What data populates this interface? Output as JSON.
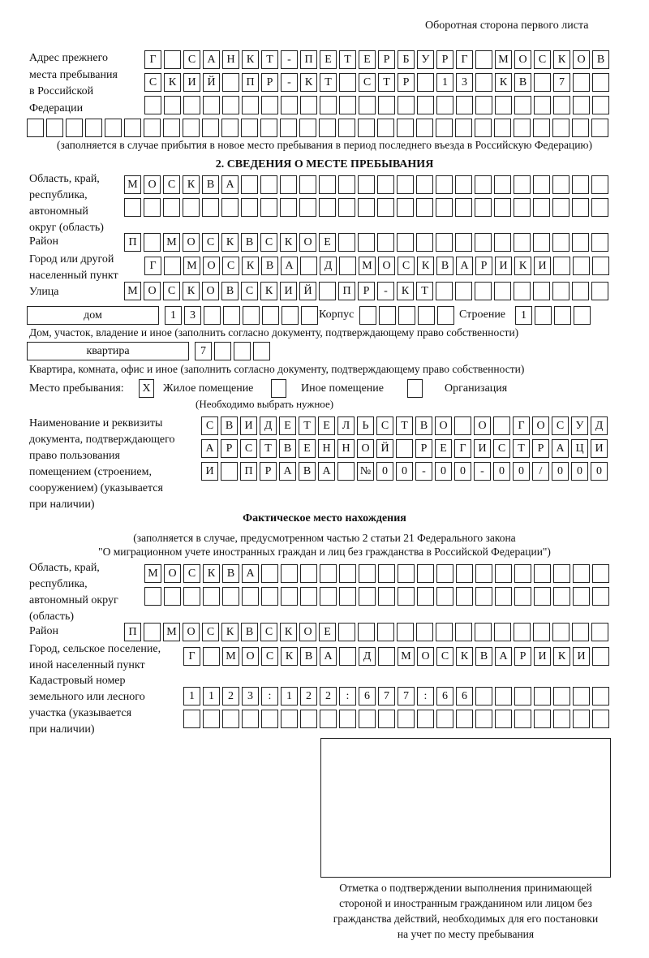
{
  "header": {
    "note": "Оборотная сторона первого листа"
  },
  "previous_address": {
    "label": "Адрес прежнего\nместа пребывания\nв Российской\nФедерации",
    "rows": [
      [
        "Г",
        "",
        "С",
        "А",
        "Н",
        "К",
        "Т",
        "-",
        "П",
        "Е",
        "Т",
        "Е",
        "Р",
        "Б",
        "У",
        "Р",
        "Г",
        "",
        "М",
        "О",
        "С",
        "К",
        "О",
        "В"
      ],
      [
        "С",
        "К",
        "И",
        "Й",
        "",
        "П",
        "Р",
        "-",
        "К",
        "Т",
        "",
        "С",
        "Т",
        "Р",
        "",
        "1",
        "3",
        "",
        "К",
        "В",
        "",
        "7",
        "",
        ""
      ],
      [
        "",
        "",
        "",
        "",
        "",
        "",
        "",
        "",
        "",
        "",
        "",
        "",
        "",
        "",
        "",
        "",
        "",
        "",
        "",
        "",
        "",
        "",
        "",
        ""
      ],
      [
        "",
        "",
        "",
        "",
        "",
        "",
        "",
        "",
        "",
        "",
        "",
        "",
        "",
        "",
        "",
        "",
        "",
        "",
        "",
        "",
        "",
        "",
        "",
        "",
        "",
        "",
        "",
        "",
        "",
        ""
      ]
    ],
    "caption": "(заполняется в случае прибытия в новое место пребывания в период последнего въезда в Российскую Федерацию)"
  },
  "stay": {
    "title": "2. СВЕДЕНИЯ О МЕСТЕ ПРЕБЫВАНИЯ",
    "region_label": "Область, край,\nреспублика,\nавтономный\nокруг (область)",
    "region_rows": [
      [
        "М",
        "О",
        "С",
        "К",
        "В",
        "А",
        "",
        "",
        "",
        "",
        "",
        "",
        "",
        "",
        "",
        "",
        "",
        "",
        "",
        "",
        "",
        "",
        "",
        "",
        ""
      ],
      [
        "",
        "",
        "",
        "",
        "",
        "",
        "",
        "",
        "",
        "",
        "",
        "",
        "",
        "",
        "",
        "",
        "",
        "",
        "",
        "",
        "",
        "",
        "",
        "",
        ""
      ]
    ],
    "district_label": "Район",
    "district": [
      "П",
      "",
      "М",
      "О",
      "С",
      "К",
      "В",
      "С",
      "К",
      "О",
      "Е",
      "",
      "",
      "",
      "",
      "",
      "",
      "",
      "",
      "",
      "",
      "",
      "",
      "",
      ""
    ],
    "city_label": "Город или другой\nнаселенный пункт",
    "city": [
      "Г",
      "",
      "М",
      "О",
      "С",
      "К",
      "В",
      "А",
      "",
      "Д",
      "",
      "М",
      "О",
      "С",
      "К",
      "В",
      "А",
      "Р",
      "И",
      "К",
      "И",
      "",
      "",
      ""
    ],
    "street_label": "Улица",
    "street": [
      "М",
      "О",
      "С",
      "К",
      "О",
      "В",
      "С",
      "К",
      "И",
      "Й",
      "",
      "П",
      "Р",
      "-",
      "К",
      "Т",
      "",
      "",
      "",
      "",
      "",
      "",
      "",
      "",
      ""
    ],
    "house_type": "дом",
    "house": [
      "1",
      "3",
      "",
      "",
      "",
      "",
      "",
      ""
    ],
    "building_label": "Корпус",
    "building": [
      "",
      "",
      "",
      "",
      ""
    ],
    "structure_label": "Строение",
    "structure": [
      "1",
      "",
      "",
      ""
    ],
    "house_caption": "Дом, участок, владение и иное (заполнить согласно документу, подтверждающему право собственности)",
    "apartment_type": "квартира",
    "apartment": [
      "7",
      "",
      "",
      ""
    ],
    "apartment_caption": "Квартира, комната, офис и иное (заполнить согласно документу, подтверждающему право собственности)",
    "place_label": "Место пребывания:",
    "options": [
      {
        "label": "Жилое помещение",
        "mark": "X"
      },
      {
        "label": "Иное помещение",
        "mark": ""
      },
      {
        "label": "Организация",
        "mark": ""
      }
    ],
    "options_hint": "(Необходимо выбрать нужное)",
    "document_label": "Наименование и реквизиты\nдокумента, подтверждающего\nправо пользования\nпомещением (строением,\nсооружением) (указывается\nпри наличии)",
    "document_rows": [
      [
        "С",
        "В",
        "И",
        "Д",
        "Е",
        "Т",
        "Е",
        "Л",
        "Ь",
        "С",
        "Т",
        "В",
        "О",
        "",
        "О",
        "",
        "Г",
        "О",
        "С",
        "У",
        "Д"
      ],
      [
        "А",
        "Р",
        "С",
        "Т",
        "В",
        "Е",
        "Н",
        "Н",
        "О",
        "Й",
        "",
        "Р",
        "Е",
        "Г",
        "И",
        "С",
        "Т",
        "Р",
        "А",
        "Ц",
        "И"
      ],
      [
        "И",
        "",
        "П",
        "Р",
        "А",
        "В",
        "А",
        "",
        "№",
        "0",
        "0",
        "-",
        "0",
        "0",
        "-",
        "0",
        "0",
        "/",
        "0",
        "0",
        "0"
      ]
    ]
  },
  "actual": {
    "title": "Фактическое место нахождения",
    "caption1": "(заполняется в случае, предусмотренном частью 2 статьи 21 Федерального закона",
    "caption2": "\"О миграционном учете иностранных граждан и лиц без гражданства в Российской Федерации\")",
    "region_label": "Область, край,\nреспублика,\nавтономный округ\n(область)",
    "region_rows": [
      [
        "М",
        "О",
        "С",
        "К",
        "В",
        "А",
        "",
        "",
        "",
        "",
        "",
        "",
        "",
        "",
        "",
        "",
        "",
        "",
        "",
        "",
        "",
        "",
        "",
        ""
      ],
      [
        "",
        "",
        "",
        "",
        "",
        "",
        "",
        "",
        "",
        "",
        "",
        "",
        "",
        "",
        "",
        "",
        "",
        "",
        "",
        "",
        "",
        "",
        "",
        ""
      ]
    ],
    "district_label": "Район",
    "district": [
      "П",
      "",
      "М",
      "О",
      "С",
      "К",
      "В",
      "С",
      "К",
      "О",
      "Е",
      "",
      "",
      "",
      "",
      "",
      "",
      "",
      "",
      "",
      "",
      "",
      "",
      "",
      ""
    ],
    "city_label": "Город, сельское поселение,\nиной населенный пункт",
    "city": [
      "Г",
      "",
      "М",
      "О",
      "С",
      "К",
      "В",
      "А",
      "",
      "Д",
      "",
      "М",
      "О",
      "С",
      "К",
      "В",
      "А",
      "Р",
      "И",
      "К",
      "И",
      ""
    ],
    "cadastral_label": "Кадастровый номер\nземельного или лесного\nучастка (указывается\nпри наличии)",
    "cadastral_rows": [
      [
        "1",
        "1",
        "2",
        "3",
        ":",
        "1",
        "2",
        "2",
        ":",
        "6",
        "7",
        "7",
        ":",
        "6",
        "6",
        "",
        "",
        "",
        "",
        "",
        "",
        ""
      ],
      [
        "",
        "",
        "",
        "",
        "",
        "",
        "",
        "",
        "",
        "",
        "",
        "",
        "",
        "",
        "",
        "",
        "",
        "",
        "",
        "",
        "",
        ""
      ]
    ]
  },
  "confirmation": {
    "caption": "Отметка о подтверждении выполнения принимающей\nстороной и иностранным гражданином или лицом без\nгражданства действий, необходимых для его постановки\nна учет по месту пребывания"
  }
}
